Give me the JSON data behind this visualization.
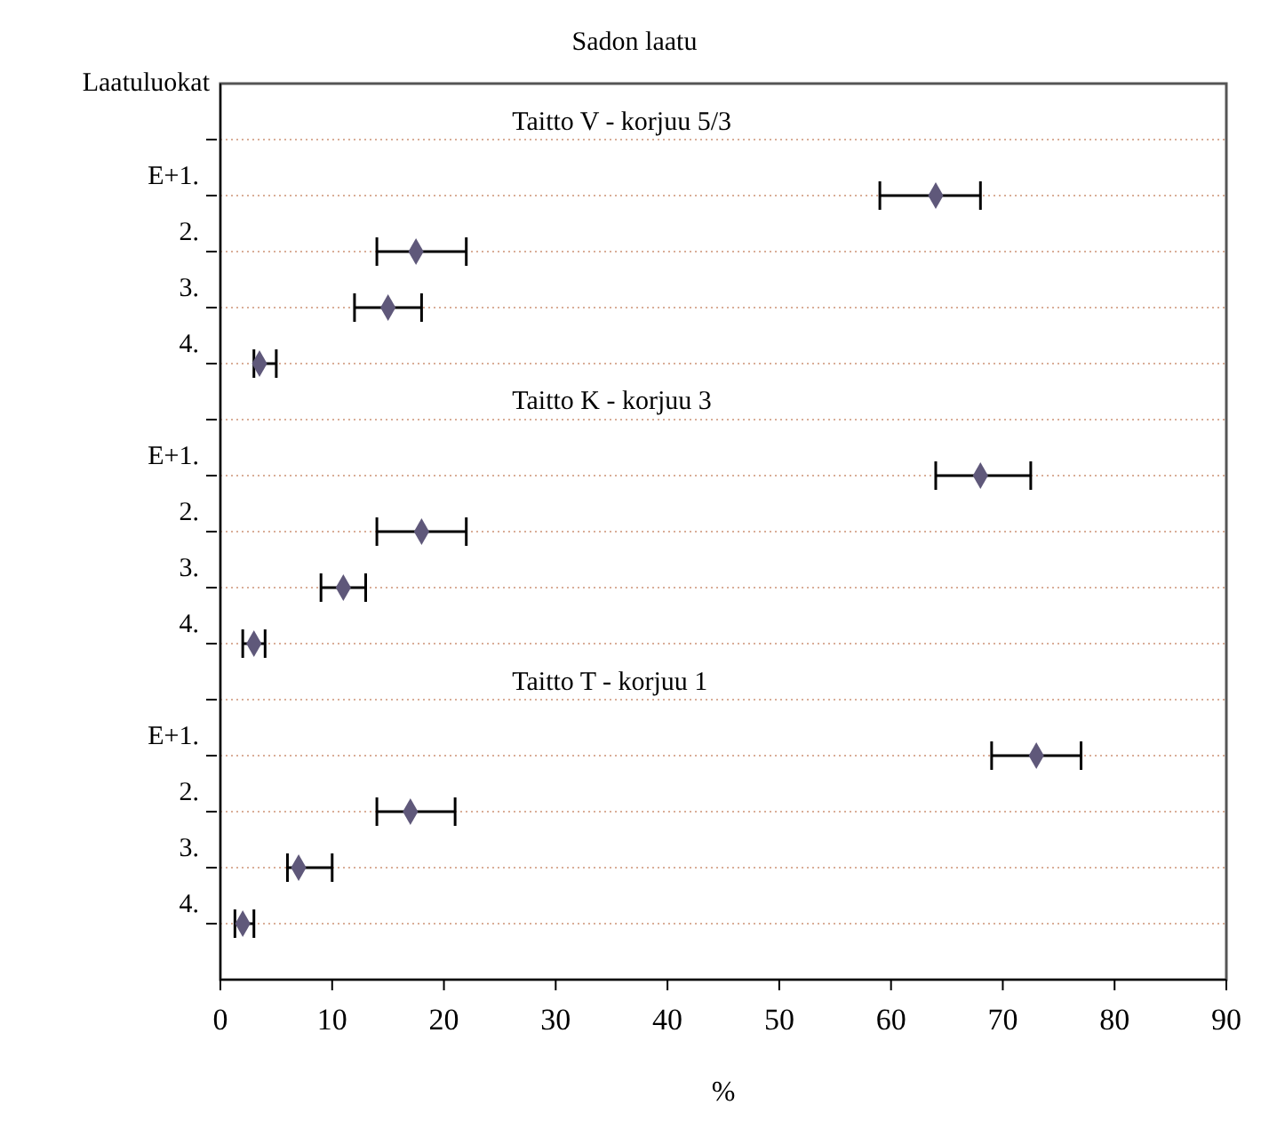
{
  "chart_data": {
    "type": "scatter",
    "orientation": "horizontal",
    "title": "Sadon laatu",
    "xlabel": "%",
    "ylabel": "Laatuluokat",
    "annotations": [
      "Taitto V - korjuu 5/3",
      "Taitto K - korjuu 3",
      "Taitto T - korjuu 1"
    ],
    "categories": [
      null,
      "E+1.",
      "2.",
      "3.",
      "4.",
      null,
      "E+1.",
      "2.",
      "3.",
      "4.",
      null,
      "E+1.",
      "2.",
      "3.",
      "4."
    ],
    "values": [
      null,
      64,
      17.5,
      15,
      3.5,
      null,
      68,
      18,
      11,
      3,
      null,
      73,
      17,
      7,
      2
    ],
    "errors": [
      null,
      [
        59,
        68
      ],
      [
        14,
        22
      ],
      [
        12,
        18
      ],
      [
        3,
        5
      ],
      null,
      [
        64,
        72.5
      ],
      [
        14,
        22
      ],
      [
        9,
        13
      ],
      [
        2,
        4
      ],
      null,
      [
        69,
        77
      ],
      [
        14,
        21
      ],
      [
        6,
        10
      ],
      [
        1.3,
        3
      ]
    ],
    "color": "#5f587a",
    "marker": "diamond",
    "grid": "y",
    "xlim": [
      0,
      90
    ],
    "xticks": [
      0,
      10,
      20,
      30,
      40,
      50,
      60,
      70,
      80,
      90
    ]
  }
}
